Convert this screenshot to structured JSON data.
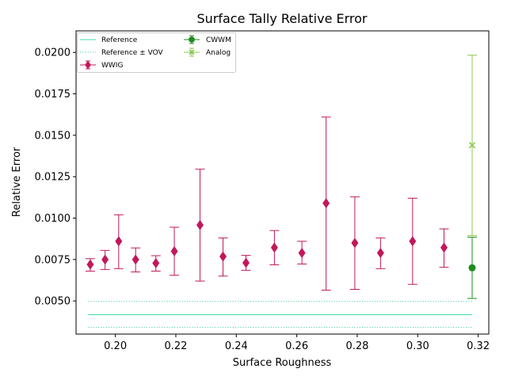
{
  "chart_data": {
    "type": "scatter",
    "title": "Surface Tally Relative Error",
    "xlabel": "Surface Roughness",
    "ylabel": "Relative Error",
    "xlim": [
      0.187,
      0.3235
    ],
    "ylim": [
      0.003,
      0.0213
    ],
    "xticks": [
      0.2,
      0.22,
      0.24,
      0.26,
      0.28,
      0.3,
      0.32
    ],
    "xtick_labels": [
      "0.20",
      "0.22",
      "0.24",
      "0.26",
      "0.28",
      "0.30",
      "0.32"
    ],
    "yticks": [
      0.005,
      0.0075,
      0.01,
      0.0125,
      0.015,
      0.0175,
      0.02
    ],
    "ytick_labels": [
      "0.0050",
      "0.0075",
      "0.0100",
      "0.0125",
      "0.0150",
      "0.0175",
      "0.0200"
    ],
    "grid": false,
    "legend_position": "top-left",
    "reference": {
      "name": "Reference",
      "value": 0.00417,
      "x_range": [
        0.191,
        0.318
      ],
      "color": "#40e0a0"
    },
    "reference_vov": {
      "name": "Reference ± VOV",
      "upper": 0.00497,
      "lower": 0.0034,
      "color": "#40d0a0"
    },
    "series": [
      {
        "name": "WWIG",
        "color": "#c2185b",
        "marker": "diamond",
        "points": [
          {
            "x": 0.1917,
            "y": 0.0072,
            "lo": 0.0068,
            "hi": 0.00755
          },
          {
            "x": 0.1966,
            "y": 0.0075,
            "lo": 0.0069,
            "hi": 0.00805
          },
          {
            "x": 0.2011,
            "y": 0.0086,
            "lo": 0.00695,
            "hi": 0.0102
          },
          {
            "x": 0.2067,
            "y": 0.0075,
            "lo": 0.00675,
            "hi": 0.0082
          },
          {
            "x": 0.2134,
            "y": 0.00728,
            "lo": 0.0068,
            "hi": 0.00773
          },
          {
            "x": 0.2195,
            "y": 0.008,
            "lo": 0.00655,
            "hi": 0.00945
          },
          {
            "x": 0.228,
            "y": 0.00958,
            "lo": 0.0062,
            "hi": 0.01295
          },
          {
            "x": 0.2356,
            "y": 0.00768,
            "lo": 0.0065,
            "hi": 0.0088
          },
          {
            "x": 0.2432,
            "y": 0.0073,
            "lo": 0.00685,
            "hi": 0.00775
          },
          {
            "x": 0.2526,
            "y": 0.00822,
            "lo": 0.00718,
            "hi": 0.00925
          },
          {
            "x": 0.2617,
            "y": 0.0079,
            "lo": 0.00723,
            "hi": 0.0086
          },
          {
            "x": 0.2697,
            "y": 0.0109,
            "lo": 0.00565,
            "hi": 0.0161
          },
          {
            "x": 0.2792,
            "y": 0.0085,
            "lo": 0.0057,
            "hi": 0.01128
          },
          {
            "x": 0.2877,
            "y": 0.0079,
            "lo": 0.00695,
            "hi": 0.0088
          },
          {
            "x": 0.2983,
            "y": 0.0086,
            "lo": 0.006,
            "hi": 0.0112
          },
          {
            "x": 0.3087,
            "y": 0.00822,
            "lo": 0.00703,
            "hi": 0.00935
          }
        ]
      },
      {
        "name": "CWWM",
        "color": "#1e8c1e",
        "marker": "circle",
        "points": [
          {
            "x": 0.318,
            "y": 0.007,
            "lo": 0.00515,
            "hi": 0.00885
          }
        ]
      },
      {
        "name": "Analog",
        "color": "#8cc850",
        "marker": "x",
        "points": [
          {
            "x": 0.318,
            "y": 0.0144,
            "lo": 0.00895,
            "hi": 0.01983
          }
        ]
      }
    ]
  }
}
